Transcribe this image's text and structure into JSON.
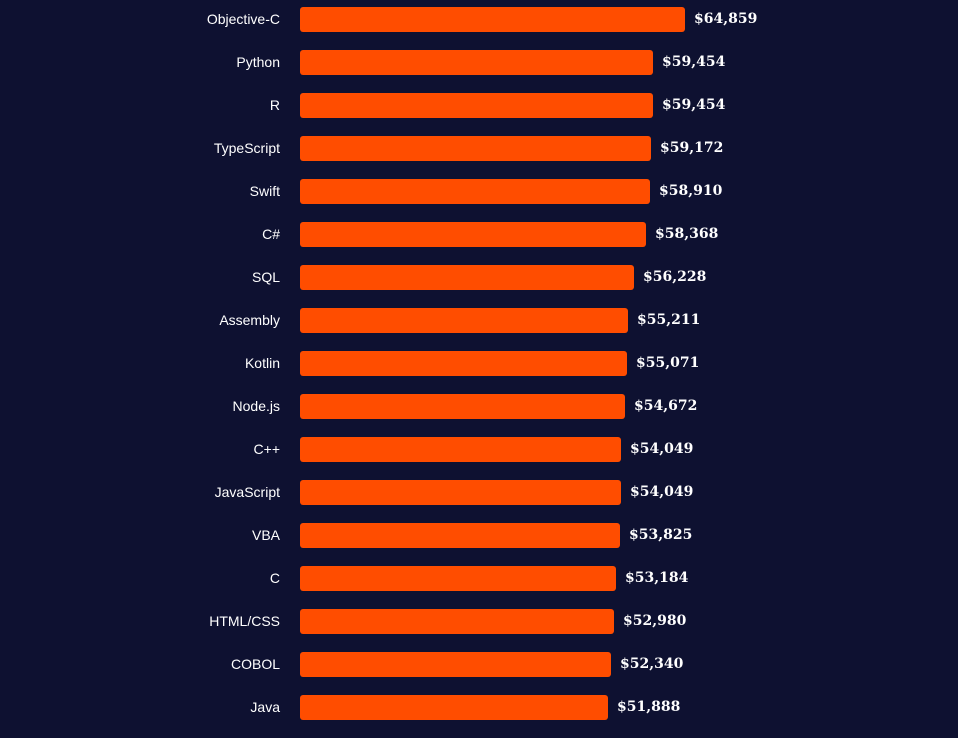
{
  "colors": {
    "background": "#0e1131",
    "bar": "#ff4d00",
    "text": "#ffffff"
  },
  "chart_data": {
    "type": "bar",
    "orientation": "horizontal",
    "categories": [
      "Objective-C",
      "Python",
      "R",
      "TypeScript",
      "Swift",
      "C#",
      "SQL",
      "Assembly",
      "Kotlin",
      "Node.js",
      "C++",
      "JavaScript",
      "VBA",
      "C",
      "HTML/CSS",
      "COBOL",
      "Java"
    ],
    "values": [
      64859,
      59454,
      59454,
      59172,
      58910,
      58368,
      56228,
      55211,
      55071,
      54672,
      54049,
      54049,
      53825,
      53184,
      52980,
      52340,
      51888
    ],
    "value_labels": [
      "$64,859",
      "$59,454",
      "$59,454",
      "$59,172",
      "$58,910",
      "$58,368",
      "$56,228",
      "$55,211",
      "$55,071",
      "$54,672",
      "$54,049",
      "$54,049",
      "$53,825",
      "$53,184",
      "$52,980",
      "$52,340",
      "$51,888"
    ],
    "title": "",
    "xlabel": "",
    "ylabel": "",
    "xlim": [
      0,
      64859
    ],
    "grid": false,
    "legend": "none"
  }
}
